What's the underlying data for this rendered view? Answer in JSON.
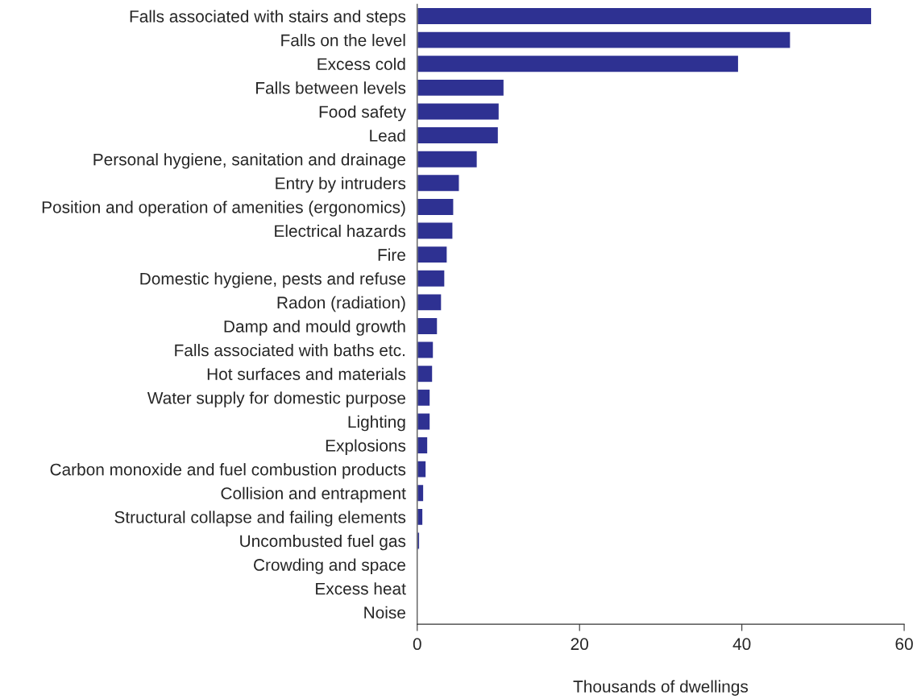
{
  "chart_data": {
    "type": "bar",
    "orientation": "horizontal",
    "xlabel": "Thousands of dwellings",
    "categories": [
      "Falls associated with stairs and steps",
      "Falls on the level",
      "Excess cold",
      "Falls between levels",
      "Food safety",
      "Lead",
      "Personal hygiene, sanitation and drainage",
      "Entry by intruders",
      "Position and operation of amenities (ergonomics)",
      "Electrical hazards",
      "Fire",
      "Domestic hygiene, pests and refuse",
      "Radon (radiation)",
      "Damp and mould growth",
      "Falls associated with baths etc.",
      "Hot surfaces and materials",
      "Water supply for domestic purpose",
      "Lighting",
      "Explosions",
      "Carbon monoxide and fuel combustion products",
      "Collision and entrapment",
      "Structural collapse and failing elements",
      "Uncombusted fuel gas",
      "Crowding and space",
      "Excess heat",
      "Noise"
    ],
    "values": [
      56,
      46,
      39.6,
      10.7,
      10.1,
      10.0,
      7.4,
      5.2,
      4.5,
      4.4,
      3.7,
      3.4,
      3.0,
      2.5,
      2.0,
      1.9,
      1.6,
      1.6,
      1.3,
      1.1,
      0.8,
      0.7,
      0.3,
      0,
      0,
      0
    ],
    "color": "#2e3192",
    "xlim": [
      0,
      60
    ],
    "xticks": [
      0,
      20,
      40,
      60
    ],
    "grid": false,
    "legend": false
  }
}
